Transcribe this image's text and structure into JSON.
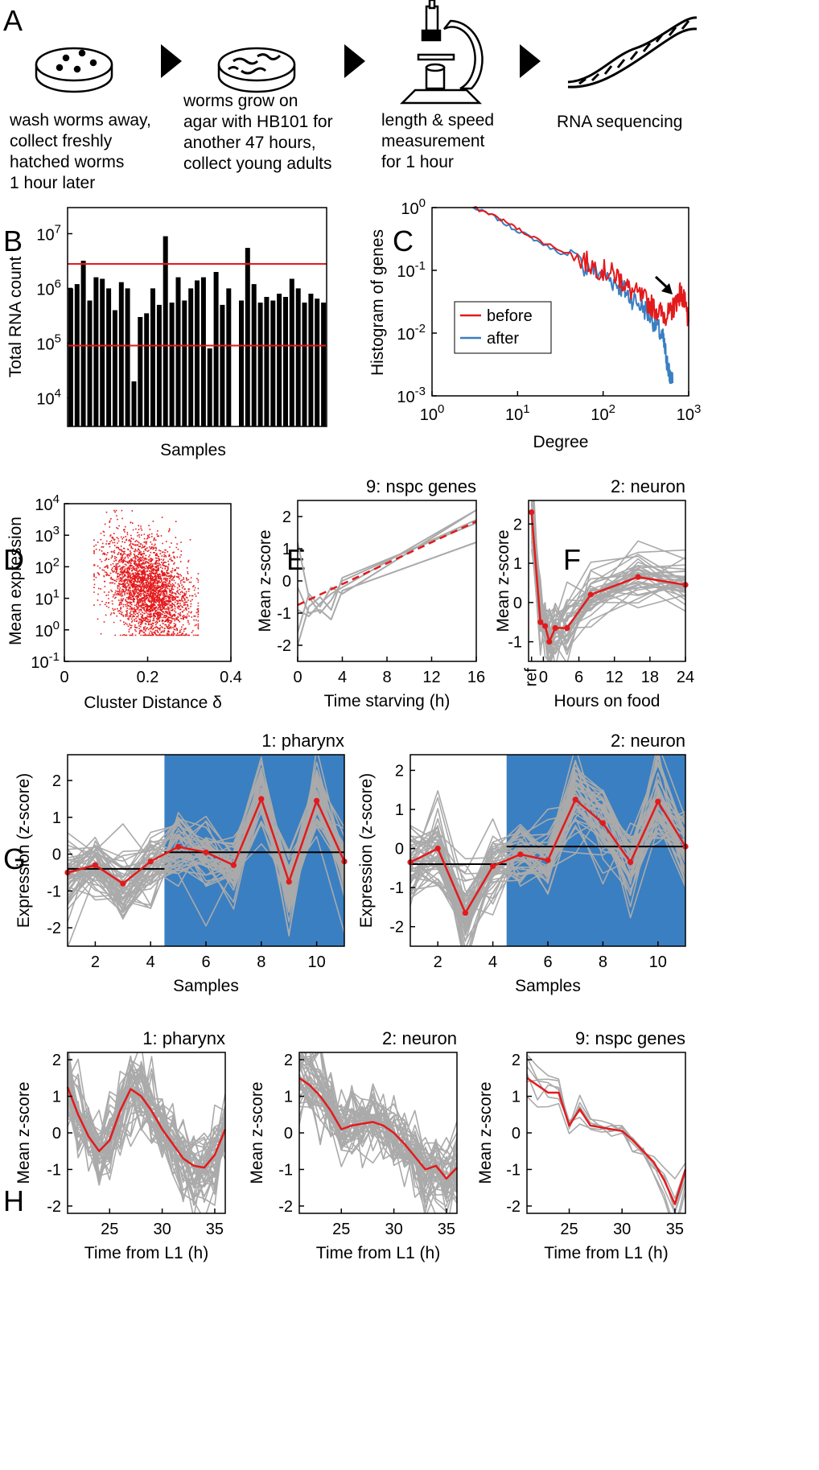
{
  "panel_letters": [
    "A",
    "B",
    "C",
    "D",
    "E",
    "F",
    "G",
    "H"
  ],
  "workflow": [
    {
      "icon": "petri-dish-eggs-icon",
      "lines": [
        "wash worms away,",
        "collect freshly",
        "hatched worms",
        "1 hour later"
      ]
    },
    {
      "icon": "petri-dish-worms-icon",
      "lines": [
        "worms grow on",
        "agar with HB101 for",
        "another 47 hours,",
        "collect young adults"
      ]
    },
    {
      "icon": "microscope-icon",
      "lines": [
        "length & speed",
        "measurement",
        "for 1 hour"
      ]
    },
    {
      "icon": "dna-helix-icon",
      "lines": [
        "RNA sequencing"
      ]
    }
  ],
  "colors": {
    "red": "#e31a1c",
    "blue": "#3a7fc1",
    "grey": "#aaaaaa",
    "black": "#000000"
  },
  "chart_data": [
    {
      "id": "B",
      "type": "bar",
      "xlabel": "Samples",
      "ylabel": "Total RNA count",
      "yscale": "log",
      "ylim": [
        3000,
        30000000
      ],
      "yticks": [
        "10^4",
        "10^5",
        "10^6",
        "10^7"
      ],
      "values": [
        1000000,
        1200000,
        3200000,
        600000,
        1600000,
        1500000,
        1000000,
        400000,
        1300000,
        1000000,
        20000,
        300000,
        350000,
        1000000,
        500000,
        9000000,
        550000,
        1600000,
        600000,
        1000000,
        1400000,
        1600000,
        80000,
        2000000,
        500000,
        1000000,
        0,
        600000,
        5500000,
        1200000,
        550000,
        700000,
        600000,
        800000,
        700000,
        1500000,
        1000000,
        550000,
        800000,
        650000,
        550000
      ],
      "hlines": [
        2800000,
        90000
      ]
    },
    {
      "id": "C",
      "type": "line",
      "xlabel": "Degree",
      "ylabel": "Histogram of genes",
      "xscale": "log",
      "yscale": "log",
      "xlim": [
        1,
        1000
      ],
      "ylim": [
        0.001,
        1
      ],
      "xticks": [
        "10^0",
        "10^1",
        "10^2",
        "10^3"
      ],
      "yticks": [
        "10^-3",
        "10^-2",
        "10^-1",
        "10^0"
      ],
      "series": [
        {
          "name": "before",
          "color": "#e31a1c",
          "x": [
            3,
            5,
            8,
            12,
            20,
            35,
            60,
            100,
            150,
            200,
            300,
            400,
            500,
            600,
            700,
            800,
            900,
            1000
          ],
          "y": [
            1.0,
            0.78,
            0.55,
            0.4,
            0.28,
            0.2,
            0.14,
            0.1,
            0.08,
            0.05,
            0.035,
            0.025,
            0.02,
            0.02,
            0.03,
            0.045,
            0.03,
            0.015
          ]
        },
        {
          "name": "after",
          "color": "#3a7fc1",
          "x": [
            3,
            5,
            8,
            12,
            20,
            35,
            60,
            100,
            150,
            200,
            300,
            400,
            500,
            550,
            600,
            650
          ],
          "y": [
            1.0,
            0.75,
            0.5,
            0.38,
            0.26,
            0.18,
            0.12,
            0.085,
            0.06,
            0.04,
            0.025,
            0.015,
            0.008,
            0.004,
            0.002,
            0.0016
          ]
        }
      ],
      "legend": "bottom-left"
    },
    {
      "id": "D",
      "type": "scatter",
      "xlabel": "Cluster Distance δ",
      "ylabel": "Mean expression",
      "yscale": "log",
      "xlim": [
        0,
        0.4
      ],
      "ylim": [
        0.1,
        10000
      ],
      "xticks": [
        "0",
        "0.2",
        "0.4"
      ],
      "yticks": [
        "10^-1",
        "10^0",
        "10^1",
        "10^2",
        "10^3",
        "10^4"
      ],
      "cloud": {
        "x_center": 0.2,
        "x_spread": 0.05,
        "log10y_center": 1.3,
        "log10y_spread": 0.75,
        "x_min": 0.07,
        "x_max": 0.32,
        "n": 3000,
        "trend": "negative"
      }
    },
    {
      "id": "E",
      "type": "line",
      "title": "9: nspc genes",
      "xlabel": "Time starving (h)",
      "ylabel": "Mean z-score",
      "xlim": [
        0,
        16
      ],
      "ylim": [
        -2.5,
        2.5
      ],
      "xticks": [
        0,
        4,
        8,
        12,
        16
      ],
      "yticks": [
        -2,
        -1,
        0,
        1,
        2
      ],
      "fit": {
        "x": [
          0,
          16
        ],
        "y": [
          -0.75,
          1.85
        ]
      },
      "series": [
        {
          "x": [
            0,
            1,
            2,
            3,
            4,
            16
          ],
          "y": [
            -1.6,
            -0.4,
            -0.8,
            -0.2,
            -0.4,
            2.2
          ]
        },
        {
          "x": [
            0,
            1,
            2,
            3,
            4,
            16
          ],
          "y": [
            1.2,
            -0.5,
            -1.0,
            -0.6,
            0.0,
            1.9
          ]
        },
        {
          "x": [
            0,
            1,
            2,
            3,
            4,
            16
          ],
          "y": [
            -0.2,
            -1.0,
            -0.9,
            -1.2,
            -0.3,
            1.2
          ]
        },
        {
          "x": [
            0,
            1,
            2,
            3,
            4,
            16
          ],
          "y": [
            -0.9,
            -1.1,
            -0.7,
            -0.4,
            -0.2,
            2.2
          ]
        },
        {
          "x": [
            0,
            1,
            2,
            3,
            4,
            16
          ],
          "y": [
            -2.0,
            -0.8,
            -0.5,
            -0.9,
            0.1,
            1.8
          ]
        }
      ]
    },
    {
      "id": "F",
      "type": "line",
      "title": "2: neuron",
      "xlabel": "Hours on food",
      "ylabel": "Mean z-score",
      "xlim": [
        -2.5,
        24
      ],
      "ylim": [
        -1.5,
        2.6
      ],
      "xticks": [
        "ref",
        "0",
        "6",
        "12",
        "18",
        "24"
      ],
      "yticks": [
        -1,
        0,
        1,
        2
      ],
      "mean": {
        "x": [
          -2,
          -0.5,
          0.3,
          1,
          2,
          4,
          8,
          16,
          24
        ],
        "y": [
          2.3,
          -0.5,
          -0.6,
          -1.0,
          -0.65,
          -0.65,
          0.2,
          0.65,
          0.45
        ]
      }
    },
    {
      "id": "G1",
      "type": "line",
      "title": "1: pharynx",
      "xlabel": "Samples",
      "ylabel": "Expression (z-score)",
      "xlim": [
        1,
        11
      ],
      "ylim": [
        -2.5,
        2.7
      ],
      "xticks": [
        2,
        4,
        6,
        8,
        10
      ],
      "yticks": [
        -2,
        -1,
        0,
        1,
        2
      ],
      "highlight_from": 4.5,
      "group_means": [
        {
          "x0": 1,
          "x1": 4.5,
          "y": -0.4
        },
        {
          "x0": 4.5,
          "x1": 11,
          "y": 0.05
        }
      ],
      "mean": {
        "x": [
          1,
          2,
          3,
          4,
          5,
          6,
          7,
          8,
          9,
          10,
          11
        ],
        "y": [
          -0.5,
          -0.3,
          -0.8,
          -0.2,
          0.2,
          0.05,
          -0.3,
          1.5,
          -0.75,
          1.45,
          -0.2
        ]
      }
    },
    {
      "id": "G2",
      "type": "line",
      "title": "2: neuron",
      "xlabel": "Samples",
      "ylabel": "Expression (z-score)",
      "xlim": [
        1,
        11
      ],
      "ylim": [
        -2.5,
        2.4
      ],
      "xticks": [
        2,
        4,
        6,
        8,
        10
      ],
      "yticks": [
        -2,
        -1,
        0,
        1,
        2
      ],
      "highlight_from": 4.5,
      "group_means": [
        {
          "x0": 1,
          "x1": 4.5,
          "y": -0.4
        },
        {
          "x0": 4.5,
          "x1": 11,
          "y": 0.05
        }
      ],
      "mean": {
        "x": [
          1,
          2,
          3,
          4,
          5,
          6,
          7,
          8,
          9,
          10,
          11
        ],
        "y": [
          -0.35,
          0.0,
          -1.65,
          -0.45,
          -0.15,
          -0.3,
          1.25,
          0.65,
          -0.35,
          1.2,
          0.05
        ]
      }
    },
    {
      "id": "H1",
      "type": "line",
      "title": "1: pharynx",
      "xlabel": "Time from L1 (h)",
      "ylabel": "Mean z-score",
      "xlim": [
        21,
        36
      ],
      "ylim": [
        -2.2,
        2.2
      ],
      "xticks": [
        25,
        30,
        35
      ],
      "yticks": [
        -2,
        -1,
        0,
        1,
        2
      ],
      "mean": {
        "x": [
          21,
          22,
          23,
          24,
          25,
          26,
          27,
          28,
          29,
          30,
          31,
          32,
          33,
          34,
          35,
          36
        ],
        "y": [
          1.25,
          0.5,
          -0.1,
          -0.5,
          -0.2,
          0.6,
          1.2,
          1.0,
          0.6,
          0.1,
          -0.3,
          -0.7,
          -0.9,
          -0.95,
          -0.6,
          0.1
        ]
      }
    },
    {
      "id": "H2",
      "type": "line",
      "title": "2: neuron",
      "xlabel": "Time from L1 (h)",
      "ylabel": "Mean z-score",
      "xlim": [
        21,
        36
      ],
      "ylim": [
        -2.2,
        2.2
      ],
      "xticks": [
        25,
        30,
        35
      ],
      "yticks": [
        -2,
        -1,
        0,
        1,
        2
      ],
      "mean": {
        "x": [
          21,
          22,
          23,
          24,
          25,
          26,
          27,
          28,
          29,
          30,
          31,
          32,
          33,
          34,
          35,
          36
        ],
        "y": [
          1.5,
          1.3,
          1.0,
          0.6,
          0.1,
          0.2,
          0.25,
          0.3,
          0.2,
          0.0,
          -0.3,
          -0.65,
          -1.0,
          -0.9,
          -1.25,
          -0.95
        ]
      }
    },
    {
      "id": "H3",
      "type": "line",
      "title": "9: nspc genes",
      "xlabel": "Time from L1 (h)",
      "ylabel": "Mean z-score",
      "xlim": [
        21,
        36
      ],
      "ylim": [
        -2.2,
        2.2
      ],
      "xticks": [
        25,
        30,
        35
      ],
      "yticks": [
        -2,
        -1,
        0,
        1,
        2
      ],
      "mean": {
        "x": [
          21,
          22,
          23,
          24,
          25,
          26,
          27,
          28,
          29,
          30,
          31,
          32,
          33,
          34,
          35,
          36
        ],
        "y": [
          1.5,
          1.3,
          1.1,
          1.1,
          0.2,
          0.65,
          0.2,
          0.15,
          0.1,
          0.05,
          -0.2,
          -0.5,
          -0.8,
          -1.3,
          -1.95,
          -1.0
        ]
      }
    }
  ]
}
